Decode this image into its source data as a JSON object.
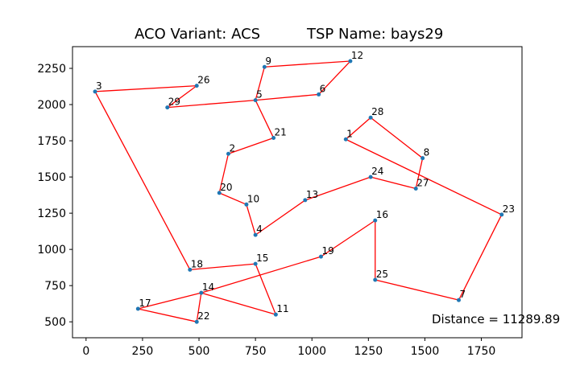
{
  "chart_data": {
    "type": "line",
    "title_left": "ACO Variant: ACS",
    "title_right": "TSP Name: bays29",
    "xlabel": "",
    "ylabel": "",
    "xlim": [
      -60,
      1930
    ],
    "ylim": [
      390,
      2400
    ],
    "x_ticks": [
      0,
      250,
      500,
      750,
      1000,
      1250,
      1500,
      1750
    ],
    "y_ticks": [
      500,
      750,
      1000,
      1250,
      1500,
      1750,
      2000,
      2250
    ],
    "grid": false,
    "annotation": "Distance = 11289.89",
    "line_color": "#ff0000",
    "point_color": "#1f77b4",
    "cities": [
      {
        "label": "1",
        "x": 1150,
        "y": 1760
      },
      {
        "label": "2",
        "x": 630,
        "y": 1660
      },
      {
        "label": "3",
        "x": 40,
        "y": 2090
      },
      {
        "label": "4",
        "x": 750,
        "y": 1100
      },
      {
        "label": "5",
        "x": 750,
        "y": 2030
      },
      {
        "label": "6",
        "x": 1030,
        "y": 2070
      },
      {
        "label": "7",
        "x": 1650,
        "y": 650
      },
      {
        "label": "8",
        "x": 1490,
        "y": 1630
      },
      {
        "label": "9",
        "x": 790,
        "y": 2260
      },
      {
        "label": "10",
        "x": 710,
        "y": 1310
      },
      {
        "label": "11",
        "x": 840,
        "y": 550
      },
      {
        "label": "12",
        "x": 1170,
        "y": 2300
      },
      {
        "label": "13",
        "x": 970,
        "y": 1340
      },
      {
        "label": "14",
        "x": 510,
        "y": 700
      },
      {
        "label": "15",
        "x": 750,
        "y": 900
      },
      {
        "label": "16",
        "x": 1280,
        "y": 1200
      },
      {
        "label": "17",
        "x": 230,
        "y": 590
      },
      {
        "label": "18",
        "x": 460,
        "y": 860
      },
      {
        "label": "19",
        "x": 1040,
        "y": 950
      },
      {
        "label": "20",
        "x": 590,
        "y": 1390
      },
      {
        "label": "21",
        "x": 830,
        "y": 1770
      },
      {
        "label": "22",
        "x": 490,
        "y": 500
      },
      {
        "label": "23",
        "x": 1840,
        "y": 1240
      },
      {
        "label": "24",
        "x": 1260,
        "y": 1500
      },
      {
        "label": "25",
        "x": 1280,
        "y": 790
      },
      {
        "label": "26",
        "x": 490,
        "y": 2130
      },
      {
        "label": "27",
        "x": 1460,
        "y": 1420
      },
      {
        "label": "28",
        "x": 1260,
        "y": 1910
      },
      {
        "label": "29",
        "x": 360,
        "y": 1980
      }
    ],
    "tour": [
      "1",
      "28",
      "8",
      "27",
      "24",
      "13",
      "4",
      "10",
      "20",
      "2",
      "21",
      "5",
      "9",
      "12",
      "6",
      "5",
      "29",
      "26",
      "3",
      "18",
      "15",
      "11",
      "14",
      "19",
      "16",
      "25",
      "7",
      "23",
      "1"
    ],
    "tour_extra_segments": [
      [
        "17",
        "14"
      ],
      [
        "14",
        "22"
      ],
      [
        "22",
        "17"
      ]
    ]
  }
}
